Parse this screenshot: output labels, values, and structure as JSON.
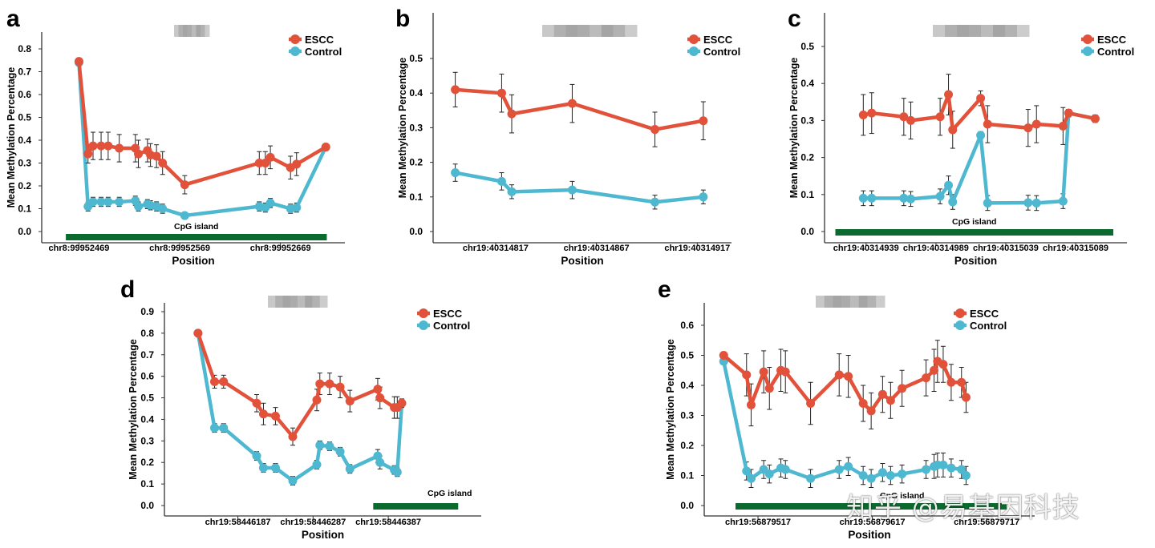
{
  "colors": {
    "escc": "#E2513A",
    "control": "#4FB8D1",
    "cpg_bar": "#0B6A2E",
    "axis": "#333333",
    "error_bar": "#222222"
  },
  "watermark": "知乎 @易基因科技",
  "chart_data": [
    {
      "panel_label": "a",
      "type": "line",
      "xlabel": "Position",
      "ylabel": "Mean Methylation Percentage",
      "ylim": [
        0,
        0.8
      ],
      "y_ticks": [
        "0.0",
        "0.1",
        "0.2",
        "0.3",
        "0.4",
        "0.5",
        "0.6",
        "0.7",
        "0.8"
      ],
      "xlim": [
        99952440,
        99952725
      ],
      "x_ticks": [
        {
          "x": 99952469,
          "label": "chr8:99952469"
        },
        {
          "x": 99952569,
          "label": "chr8:99952569"
        },
        {
          "x": 99952669,
          "label": "chr8:99952669"
        }
      ],
      "legend": {
        "position": "top-right",
        "entries": [
          "ESCC",
          "Control"
        ]
      },
      "cpg_island": {
        "start": 99952456,
        "end": 99952715,
        "label": "CpG island"
      },
      "series": [
        {
          "name": "ESCC",
          "x": [
            99952469,
            99952478,
            99952483,
            99952491,
            99952498,
            99952509,
            99952525,
            99952528,
            99952537,
            99952540,
            99952546,
            99952552,
            99952574,
            99952648,
            99952654,
            99952659,
            99952679,
            99952685,
            99952714
          ],
          "y": [
            0.745,
            0.34,
            0.375,
            0.375,
            0.375,
            0.365,
            0.365,
            0.34,
            0.355,
            0.335,
            0.33,
            0.3,
            0.205,
            0.3,
            0.3,
            0.325,
            0.28,
            0.295,
            0.37
          ],
          "err": [
            0.01,
            0.04,
            0.06,
            0.06,
            0.06,
            0.06,
            0.06,
            0.06,
            0.05,
            0.05,
            0.05,
            0.05,
            0.04,
            0.05,
            0.05,
            0.05,
            0.05,
            0.05,
            0.01
          ]
        },
        {
          "name": "Control",
          "x": [
            99952469,
            99952478,
            99952483,
            99952491,
            99952498,
            99952509,
            99952525,
            99952528,
            99952537,
            99952540,
            99952546,
            99952552,
            99952574,
            99952648,
            99952654,
            99952659,
            99952679,
            99952685,
            99952714
          ],
          "y": [
            0.74,
            0.11,
            0.13,
            0.13,
            0.13,
            0.13,
            0.135,
            0.11,
            0.12,
            0.115,
            0.11,
            0.1,
            0.07,
            0.11,
            0.105,
            0.125,
            0.1,
            0.105,
            0.37
          ],
          "err": [
            0.01,
            0.02,
            0.02,
            0.02,
            0.02,
            0.02,
            0.02,
            0.02,
            0.02,
            0.02,
            0.02,
            0.02,
            0.01,
            0.02,
            0.02,
            0.02,
            0.02,
            0.02,
            0.01
          ]
        }
      ]
    },
    {
      "panel_label": "b",
      "type": "line",
      "xlabel": "Position",
      "ylabel": "Mean Methylation Percentage",
      "ylim": [
        0,
        0.55
      ],
      "y_ticks": [
        "0.0",
        "0.1",
        "0.2",
        "0.3",
        "0.4",
        "0.5"
      ],
      "xlim": [
        40314790,
        40314930
      ],
      "x_ticks": [
        {
          "x": 40314817,
          "label": "chr19:40314817"
        },
        {
          "x": 40314867,
          "label": "chr19:40314867"
        },
        {
          "x": 40314917,
          "label": "chr19:40314917"
        }
      ],
      "legend": {
        "position": "top-right",
        "entries": [
          "ESCC",
          "Control"
        ]
      },
      "series": [
        {
          "name": "ESCC",
          "x": [
            40314797,
            40314820,
            40314825,
            40314855,
            40314896,
            40314920
          ],
          "y": [
            0.41,
            0.4,
            0.34,
            0.37,
            0.295,
            0.32
          ],
          "err": [
            0.05,
            0.055,
            0.055,
            0.055,
            0.05,
            0.055
          ]
        },
        {
          "name": "Control",
          "x": [
            40314797,
            40314820,
            40314825,
            40314855,
            40314896,
            40314920
          ],
          "y": [
            0.17,
            0.145,
            0.115,
            0.12,
            0.085,
            0.1
          ],
          "err": [
            0.025,
            0.025,
            0.02,
            0.025,
            0.02,
            0.02
          ]
        }
      ]
    },
    {
      "panel_label": "c",
      "type": "line",
      "xlabel": "Position",
      "ylabel": "Mean Methylation Percentage",
      "ylim": [
        0,
        0.55
      ],
      "y_ticks": [
        "0.0",
        "0.1",
        "0.2",
        "0.3",
        "0.4",
        "0.5"
      ],
      "xlim": [
        40314915,
        40315120
      ],
      "x_ticks": [
        {
          "x": 40314939,
          "label": "chr19:40314939"
        },
        {
          "x": 40314989,
          "label": "chr19:40314989"
        },
        {
          "x": 40315039,
          "label": "chr19:40315039"
        },
        {
          "x": 40315089,
          "label": "chr19:40315089"
        }
      ],
      "legend": {
        "position": "top-right",
        "entries": [
          "ESCC",
          "Control"
        ]
      },
      "cpg_island": {
        "start": 40314917,
        "end": 40315116,
        "label": "CpG island"
      },
      "series": [
        {
          "name": "ESCC",
          "x": [
            40314937,
            40314943,
            40314966,
            40314971,
            40314992,
            40314998,
            40315001,
            40315021,
            40315026,
            40315055,
            40315061,
            40315080,
            40315084,
            40315103
          ],
          "y": [
            0.315,
            0.32,
            0.31,
            0.3,
            0.31,
            0.37,
            0.275,
            0.36,
            0.29,
            0.28,
            0.29,
            0.285,
            0.32,
            0.305
          ],
          "err": [
            0.055,
            0.055,
            0.05,
            0.05,
            0.05,
            0.055,
            0.05,
            0.02,
            0.05,
            0.05,
            0.05,
            0.05,
            0.01,
            0.01
          ]
        },
        {
          "name": "Control",
          "x": [
            40314937,
            40314943,
            40314966,
            40314971,
            40314992,
            40314998,
            40315001,
            40315021,
            40315026,
            40315055,
            40315061,
            40315080,
            40315084,
            40315103
          ],
          "y": [
            0.09,
            0.09,
            0.09,
            0.088,
            0.095,
            0.125,
            0.08,
            0.26,
            0.077,
            0.078,
            0.077,
            0.082,
            0.32,
            0.305
          ],
          "err": [
            0.02,
            0.02,
            0.02,
            0.02,
            0.02,
            0.025,
            0.02,
            0.01,
            0.02,
            0.02,
            0.02,
            0.02,
            0.01,
            0.01
          ]
        }
      ]
    },
    {
      "panel_label": "d",
      "type": "line",
      "xlabel": "Position",
      "ylabel": "Mean Methylation Percentage",
      "ylim": [
        0,
        0.92
      ],
      "y_ticks": [
        "0.0",
        "0.1",
        "0.2",
        "0.3",
        "0.4",
        "0.5",
        "0.6",
        "0.7",
        "0.8",
        "0.9"
      ],
      "xlim": [
        40,
        440
      ],
      "x_ticks": [
        {
          "x": 127,
          "label": "chr19:58446187"
        },
        {
          "x": 227,
          "label": "chr19:58446287"
        },
        {
          "x": 327,
          "label": "chr19:58446387"
        }
      ],
      "legend": {
        "position": "top-right",
        "entries": [
          "ESCC",
          "Control"
        ]
      },
      "cpg_island": {
        "start": 307,
        "end": 420,
        "label": "CpG island"
      },
      "series": [
        {
          "name": "ESCC",
          "x": [
            74,
            96,
            108,
            152,
            161,
            177,
            200,
            232,
            236,
            249,
            263,
            276,
            313,
            316,
            335,
            339,
            345
          ],
          "y": [
            0.8,
            0.575,
            0.575,
            0.475,
            0.425,
            0.415,
            0.32,
            0.49,
            0.565,
            0.565,
            0.55,
            0.485,
            0.54,
            0.5,
            0.455,
            0.455,
            0.475
          ],
          "err": [
            0.01,
            0.03,
            0.03,
            0.04,
            0.05,
            0.04,
            0.04,
            0.05,
            0.05,
            0.05,
            0.05,
            0.05,
            0.05,
            0.05,
            0.05,
            0.05,
            0.02
          ]
        },
        {
          "name": "Control",
          "x": [
            74,
            96,
            108,
            152,
            161,
            177,
            200,
            232,
            236,
            249,
            263,
            276,
            313,
            316,
            335,
            339,
            345
          ],
          "y": [
            0.8,
            0.36,
            0.36,
            0.23,
            0.175,
            0.175,
            0.115,
            0.19,
            0.28,
            0.275,
            0.25,
            0.17,
            0.23,
            0.2,
            0.165,
            0.155,
            0.475
          ],
          "err": [
            0.01,
            0.02,
            0.02,
            0.02,
            0.02,
            0.02,
            0.02,
            0.02,
            0.02,
            0.02,
            0.02,
            0.02,
            0.03,
            0.03,
            0.02,
            0.02,
            0.01
          ]
        }
      ]
    },
    {
      "panel_label": "e",
      "type": "line",
      "xlabel": "Position",
      "ylabel": "Mean Methylation Percentage",
      "ylim": [
        0,
        0.65
      ],
      "y_ticks": [
        "0.0",
        "0.1",
        "0.2",
        "0.3",
        "0.4",
        "0.5",
        "0.6"
      ],
      "xlim": [
        20,
        295
      ],
      "x_ticks": [
        {
          "x": 56879517,
          "label": "chr19:56879517",
          "pos": 60
        },
        {
          "x": 56879617,
          "label": "chr19:56879617",
          "pos": 160
        },
        {
          "x": 56879717,
          "label": "chr19:56879717",
          "pos": 260
        }
      ],
      "legend": {
        "position": "top-right",
        "entries": [
          "ESCC",
          "Control"
        ]
      },
      "cpg_island": {
        "label": "CpG island"
      },
      "series": [
        {
          "name": "ESCC",
          "x": [
            30,
            50,
            54,
            65,
            70,
            80,
            84,
            106,
            131,
            139,
            152,
            159,
            169,
            176,
            186,
            207,
            214,
            217,
            222,
            229,
            238,
            242
          ],
          "y": [
            0.5,
            0.435,
            0.335,
            0.445,
            0.39,
            0.45,
            0.445,
            0.34,
            0.435,
            0.43,
            0.34,
            0.315,
            0.37,
            0.35,
            0.39,
            0.425,
            0.45,
            0.48,
            0.47,
            0.41,
            0.41,
            0.36
          ],
          "err": [
            0.01,
            0.07,
            0.07,
            0.07,
            0.07,
            0.07,
            0.07,
            0.07,
            0.07,
            0.07,
            0.06,
            0.06,
            0.06,
            0.06,
            0.06,
            0.06,
            0.07,
            0.07,
            0.06,
            0.06,
            0.05,
            0.05
          ]
        },
        {
          "name": "Control",
          "x": [
            30,
            50,
            54,
            65,
            70,
            80,
            84,
            106,
            131,
            139,
            152,
            159,
            169,
            176,
            186,
            207,
            214,
            217,
            222,
            229,
            238,
            242
          ],
          "y": [
            0.48,
            0.115,
            0.09,
            0.12,
            0.105,
            0.125,
            0.12,
            0.09,
            0.12,
            0.13,
            0.1,
            0.09,
            0.11,
            0.1,
            0.105,
            0.12,
            0.13,
            0.135,
            0.135,
            0.125,
            0.12,
            0.1
          ],
          "err": [
            0.01,
            0.03,
            0.03,
            0.03,
            0.03,
            0.03,
            0.03,
            0.03,
            0.03,
            0.03,
            0.03,
            0.03,
            0.03,
            0.03,
            0.03,
            0.03,
            0.04,
            0.04,
            0.04,
            0.03,
            0.03,
            0.03
          ]
        }
      ]
    }
  ]
}
